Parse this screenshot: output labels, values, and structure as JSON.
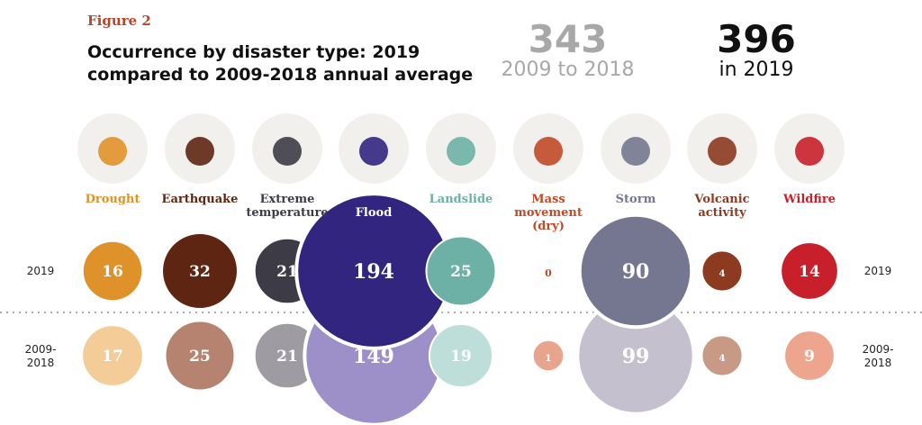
{
  "figure_label": "Figure 2",
  "title_line1": "Occurrence by disaster type: 2019",
  "title_line2": "compared to 2009-2018 annual average",
  "totals": {
    "average": {
      "value": "343",
      "label": "2009 to 2018",
      "color": "#a8a8a8"
    },
    "current": {
      "value": "396",
      "label": "in 2019",
      "color": "#111111"
    }
  },
  "chart_data": {
    "type": "bubble",
    "row_labels": [
      "2019",
      "2009-\n2018"
    ],
    "categories": [
      "Drought",
      "Earthquake",
      "Extreme temperature",
      "Flood",
      "Landslide",
      "Mass movement (dry)",
      "Storm",
      "Volcanic activity",
      "Wildfire"
    ],
    "icons": [
      "drought-icon",
      "earthquake-icon",
      "thermometer-icon",
      "flood-icon",
      "landslide-icon",
      "mass-movement-icon",
      "storm-icon",
      "volcano-icon",
      "wildfire-icon"
    ],
    "series": [
      {
        "name": "2019",
        "values": [
          16,
          32,
          21,
          194,
          25,
          0,
          90,
          4,
          14
        ]
      },
      {
        "name": "2009-2018",
        "values": [
          17,
          25,
          21,
          149,
          19,
          1,
          99,
          4,
          9
        ]
      }
    ],
    "colors_2019": [
      "#e0922a",
      "#5e2612",
      "#3d3b45",
      "#312580",
      "#6db1a6",
      "#c04a28",
      "#74778f",
      "#8c3a20",
      "#c8202a"
    ],
    "colors_avg": [
      "#f4cc98",
      "#b5836f",
      "#9e9ba3",
      "#9d8fc7",
      "#bedfd9",
      "#e8a58e",
      "#c4c0cd",
      "#c89a85",
      "#eda58e"
    ]
  }
}
